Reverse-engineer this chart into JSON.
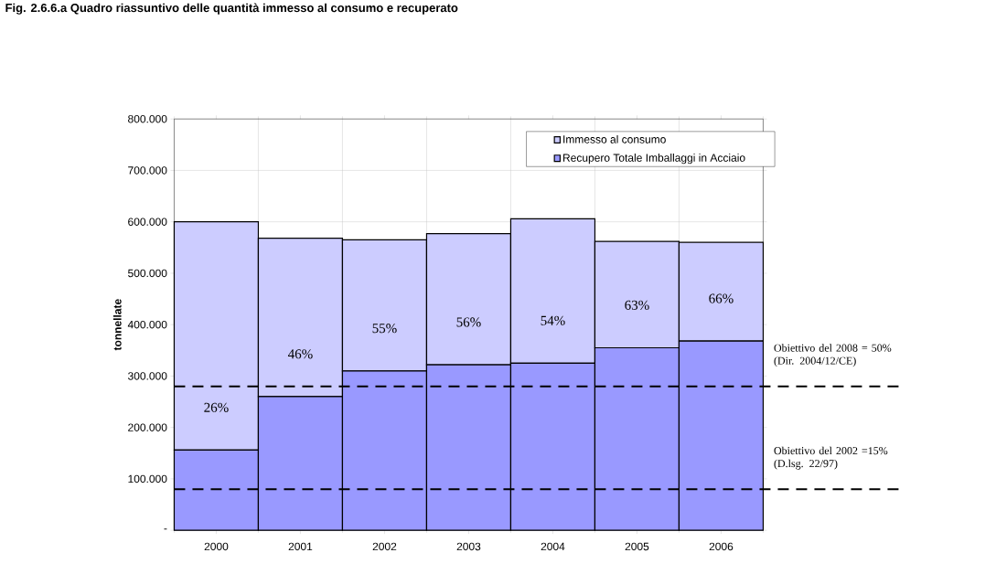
{
  "chart_data": {
    "type": "bar",
    "title": "Fig. 2.6.6.a Quadro riassuntivo delle quantità immesso al consumo e recuperato",
    "ylabel": "tonnellate",
    "categories": [
      "2000",
      "2001",
      "2002",
      "2003",
      "2004",
      "2005",
      "2006"
    ],
    "stacked": true,
    "series": [
      {
        "name": "Recupero Totale Imballaggi in Acciaio",
        "color": "#9999ff",
        "values": [
          156000,
          260000,
          310000,
          322000,
          325000,
          355000,
          368000
        ]
      },
      {
        "name": "Immesso al consumo",
        "color": "#ccccff",
        "values": [
          444000,
          308000,
          255000,
          255000,
          281000,
          207000,
          192000
        ]
      }
    ],
    "ylim": [
      0,
      800000
    ],
    "yticks": [
      {
        "value": 0,
        "label": "-"
      },
      {
        "value": 100000,
        "label": "100.000"
      },
      {
        "value": 200000,
        "label": "200.000"
      },
      {
        "value": 300000,
        "label": "300.000"
      },
      {
        "value": 400000,
        "label": "400.000"
      },
      {
        "value": 500000,
        "label": "500.000"
      },
      {
        "value": 600000,
        "label": "600.000"
      },
      {
        "value": 700000,
        "label": "700.000"
      },
      {
        "value": 800000,
        "label": "800.000"
      }
    ],
    "grid": true,
    "legend": "top right",
    "annotations": [
      "26%",
      "46%",
      "55%",
      "56%",
      "54%",
      "63%",
      "66%",
      {
        "text": "Obiettivo del 2008 = 50% (Dir. 2004/12/CE)",
        "y": 280000
      },
      {
        "text": "Obiettivo del 2002 =15% (D.lsg. 22/97)",
        "y": 80000
      }
    ],
    "ref_lines": [
      {
        "axis": "y",
        "value": 280000,
        "color": "#000000",
        "line_style": "dashed"
      },
      {
        "axis": "y",
        "value": 80000,
        "color": "#000000",
        "line_style": "dashed"
      }
    ]
  }
}
